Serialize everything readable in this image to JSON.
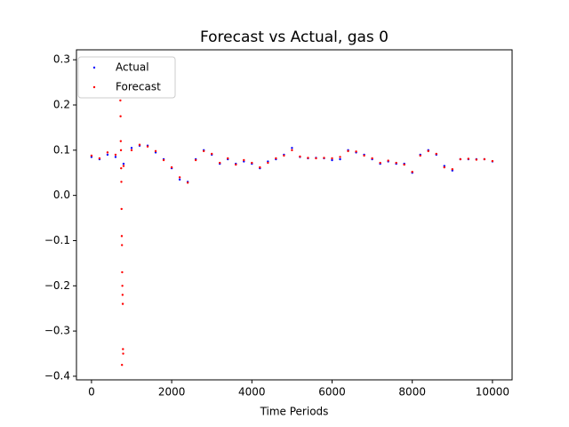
{
  "chart_data": {
    "type": "scatter",
    "title": "Forecast vs Actual, gas 0",
    "x_label": "Time Periods",
    "xlim": [
      -375,
      10490
    ],
    "ylim": [
      -0.408,
      0.322
    ],
    "xticks": [
      0,
      2000,
      4000,
      6000,
      8000,
      10000
    ],
    "yticks": [
      {
        "value": -0.4,
        "label": "−0.4"
      },
      {
        "value": -0.3,
        "label": "−0.3"
      },
      {
        "value": -0.2,
        "label": "−0.2"
      },
      {
        "value": -0.1,
        "label": "−0.1"
      },
      {
        "value": 0,
        "label": "0.0"
      },
      0.1,
      0.2,
      0.3
    ],
    "legend": "upper left",
    "series": [
      {
        "name": "Actual",
        "color": "#0000ff",
        "x": [
          0,
          200,
          400,
          600,
          800,
          1000,
          1200,
          1400,
          1600,
          1800,
          2000,
          2200,
          2400,
          2600,
          2800,
          3000,
          3200,
          3400,
          3600,
          3800,
          4000,
          4200,
          4400,
          4600,
          4800,
          5000,
          5200,
          5400,
          5600,
          5800,
          6000,
          6200,
          6400,
          6600,
          6800,
          7000,
          7200,
          7400,
          7600,
          7800,
          8000,
          8200,
          8400,
          8600,
          8800,
          9000,
          9200,
          9400,
          9600,
          9800,
          10000
        ],
        "values": [
          0.085,
          0.08,
          0.09,
          0.085,
          0.07,
          0.105,
          0.11,
          0.11,
          0.095,
          0.08,
          0.06,
          0.035,
          0.03,
          0.08,
          0.1,
          0.09,
          0.07,
          0.08,
          0.07,
          0.075,
          0.07,
          0.06,
          0.075,
          0.08,
          0.09,
          0.105,
          0.085,
          0.082,
          0.083,
          0.082,
          0.078,
          0.08,
          0.1,
          0.095,
          0.09,
          0.08,
          0.07,
          0.075,
          0.07,
          0.07,
          0.05,
          0.09,
          0.1,
          0.09,
          0.065,
          0.055,
          0.08,
          0.08,
          0.08,
          0.08,
          0.075
        ]
      },
      {
        "name": "Forecast",
        "color": "#ff0000",
        "x": [
          0,
          200,
          400,
          600,
          800,
          1000,
          1200,
          1400,
          1600,
          1800,
          2000,
          2200,
          2400,
          2600,
          2800,
          3000,
          3200,
          3400,
          3600,
          3800,
          4000,
          4200,
          4400,
          4600,
          4800,
          5000,
          5200,
          5400,
          5600,
          5800,
          6000,
          6200,
          6400,
          6600,
          6800,
          7000,
          7200,
          7400,
          7600,
          7800,
          8000,
          8200,
          8400,
          8600,
          8800,
          9000,
          9200,
          9400,
          9600,
          9800,
          10000,
          720,
          725,
          730,
          735,
          740,
          745,
          750,
          755,
          760,
          765,
          770,
          775,
          780,
          785,
          790,
          760
        ],
        "values": [
          0.088,
          0.082,
          0.095,
          0.09,
          0.065,
          0.1,
          0.112,
          0.108,
          0.098,
          0.078,
          0.062,
          0.04,
          0.028,
          0.078,
          0.098,
          0.092,
          0.072,
          0.082,
          0.068,
          0.078,
          0.072,
          0.062,
          0.072,
          0.082,
          0.088,
          0.1,
          0.086,
          0.083,
          0.082,
          0.083,
          0.082,
          0.085,
          0.098,
          0.097,
          0.088,
          0.082,
          0.072,
          0.077,
          0.072,
          0.068,
          0.052,
          0.088,
          0.098,
          0.092,
          0.062,
          0.058,
          0.08,
          0.081,
          0.079,
          0.08,
          0.076,
          0.21,
          0.175,
          0.12,
          0.1,
          0.06,
          0.03,
          -0.03,
          -0.09,
          -0.11,
          -0.17,
          -0.2,
          -0.22,
          -0.24,
          -0.34,
          -0.35,
          -0.375
        ]
      }
    ]
  }
}
